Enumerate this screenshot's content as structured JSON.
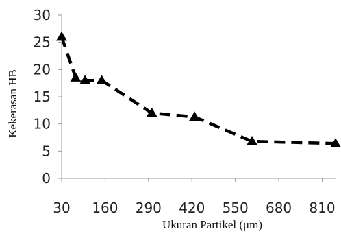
{
  "chart_data": {
    "type": "line",
    "title": "",
    "xlabel": "Ukuran Partikel (μm)",
    "ylabel": "Kekerasan HB",
    "xlim": [
      30,
      850
    ],
    "ylim": [
      0,
      30
    ],
    "x_ticks": [
      30,
      160,
      290,
      420,
      550,
      680,
      810
    ],
    "y_ticks": [
      0,
      5,
      10,
      15,
      20,
      25,
      30
    ],
    "grid": false,
    "legend": "none",
    "series": [
      {
        "x": [
          30,
          72,
          100,
          150,
          300,
          428,
          600,
          850
        ],
        "y": [
          26,
          18.5,
          18,
          18,
          12,
          11.3,
          6.8,
          6.4
        ],
        "color": "#000000",
        "line_style": "dashed",
        "marker": "triangle"
      }
    ]
  }
}
